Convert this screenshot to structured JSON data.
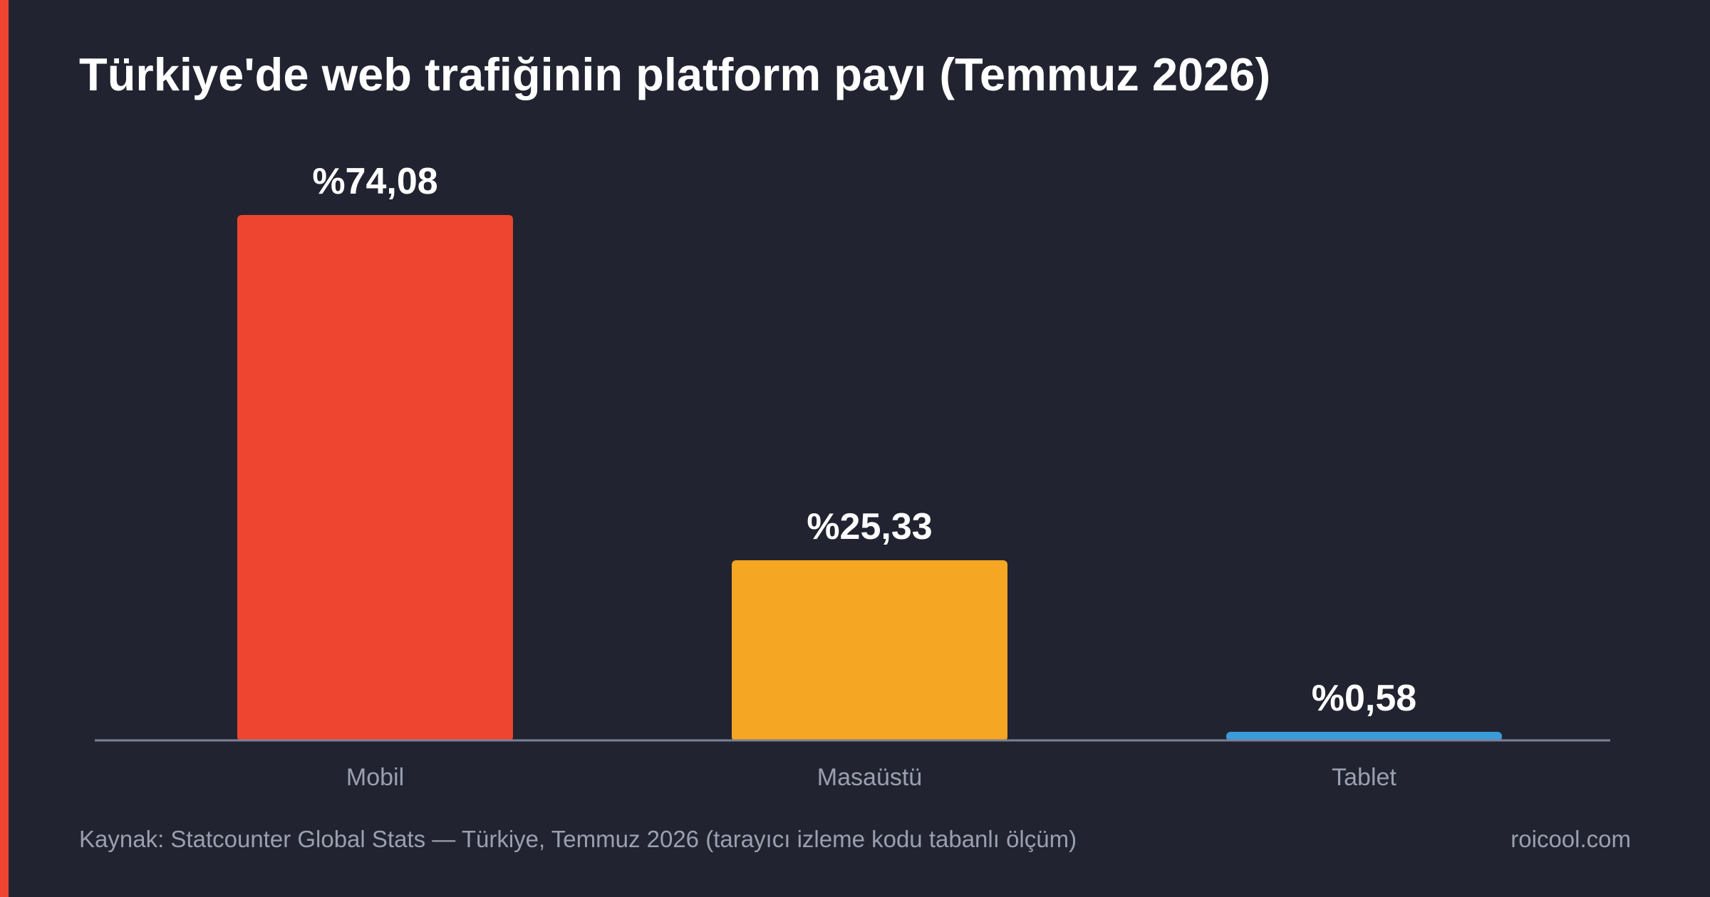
{
  "theme": {
    "background": "#212430",
    "accent": "#ee4530",
    "text": "#ffffff",
    "muted_text": "#9aa0b0",
    "axis": "#7c8194"
  },
  "footer": {
    "source": "Kaynak: Statcounter Global Stats — Türkiye, Temmuz 2026 (tarayıcı izleme kodu tabanlı ölçüm)",
    "site": "roicool.com"
  },
  "chart_data": {
    "type": "bar",
    "title": "Türkiye'de web trafiğinin platform payı (Temmuz 2026)",
    "xlabel": "",
    "ylabel": "",
    "categories": [
      "Mobil",
      "Masaüstü",
      "Tablet"
    ],
    "values": [
      74.08,
      25.33,
      0.58
    ],
    "value_labels": [
      "%74,08",
      "%25,33",
      "%0,58"
    ],
    "colors": [
      "#ee4530",
      "#f5a623",
      "#3b9bd9"
    ],
    "ylim": [
      0,
      74.08
    ],
    "grid": false,
    "legend": "none"
  }
}
